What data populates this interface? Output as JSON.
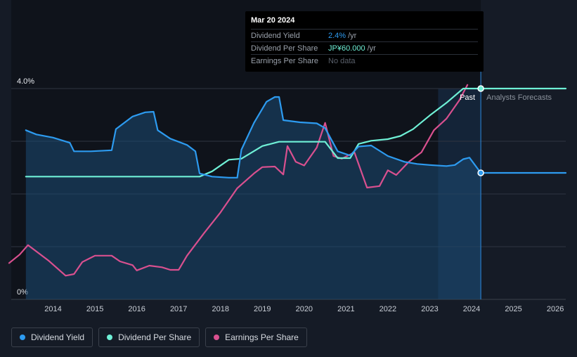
{
  "tooltip": {
    "date": "Mar 20 2024",
    "rows": [
      {
        "label": "Dividend Yield",
        "value": "2.4%",
        "unit": "/yr",
        "color": "#2d9bf0"
      },
      {
        "label": "Dividend Per Share",
        "value": "JP¥60.000",
        "unit": "/yr",
        "color": "#6ff0d6"
      },
      {
        "label": "Earnings Per Share",
        "value": "No data",
        "unit": "",
        "color": "#5a606b"
      }
    ]
  },
  "markers": {
    "past": "Past",
    "forecast": "Analysts Forecasts"
  },
  "legend": [
    {
      "label": "Dividend Yield",
      "color": "#2d9bf0"
    },
    {
      "label": "Dividend Per Share",
      "color": "#6ff0d6"
    },
    {
      "label": "Earnings Per Share",
      "color": "#d9508f"
    }
  ],
  "chart_data": {
    "type": "line",
    "ylim": [
      0,
      4.0
    ],
    "y_tick_labels": [
      {
        "value": 4.0,
        "label": "4.0%"
      },
      {
        "value": 0,
        "label": "0%"
      }
    ],
    "xlim": [
      2013.0,
      2026.25
    ],
    "x_ticks": [
      2014,
      2015,
      2016,
      2017,
      2018,
      2019,
      2020,
      2021,
      2022,
      2023,
      2024,
      2025,
      2026
    ],
    "past_boundary": 2024.22,
    "forecast_band_start": 2023.2,
    "series": [
      {
        "name": "Dividend Yield",
        "color": "#2d9bf0",
        "points": [
          [
            2013.35,
            3.21
          ],
          [
            2013.6,
            3.13
          ],
          [
            2014.0,
            3.07
          ],
          [
            2014.4,
            2.97
          ],
          [
            2014.5,
            2.81
          ],
          [
            2014.9,
            2.81
          ],
          [
            2015.4,
            2.83
          ],
          [
            2015.5,
            3.23
          ],
          [
            2015.9,
            3.47
          ],
          [
            2016.2,
            3.55
          ],
          [
            2016.4,
            3.56
          ],
          [
            2016.5,
            3.21
          ],
          [
            2016.8,
            3.05
          ],
          [
            2017.2,
            2.93
          ],
          [
            2017.4,
            2.81
          ],
          [
            2017.5,
            2.39
          ],
          [
            2017.8,
            2.33
          ],
          [
            2018.2,
            2.31
          ],
          [
            2018.4,
            2.31
          ],
          [
            2018.5,
            2.84
          ],
          [
            2018.8,
            3.35
          ],
          [
            2019.1,
            3.75
          ],
          [
            2019.3,
            3.84
          ],
          [
            2019.4,
            3.84
          ],
          [
            2019.5,
            3.4
          ],
          [
            2019.9,
            3.36
          ],
          [
            2020.3,
            3.34
          ],
          [
            2020.5,
            3.25
          ],
          [
            2020.8,
            2.81
          ],
          [
            2021.1,
            2.73
          ],
          [
            2021.3,
            2.9
          ],
          [
            2021.6,
            2.92
          ],
          [
            2022.0,
            2.72
          ],
          [
            2022.4,
            2.61
          ],
          [
            2022.7,
            2.57
          ],
          [
            2023.0,
            2.55
          ],
          [
            2023.4,
            2.53
          ],
          [
            2023.6,
            2.55
          ],
          [
            2023.8,
            2.66
          ],
          [
            2023.95,
            2.69
          ],
          [
            2024.22,
            2.4
          ],
          [
            2026.25,
            2.4
          ]
        ]
      },
      {
        "name": "Dividend Per Share",
        "color": "#6ff0d6",
        "points": [
          [
            2013.35,
            2.33
          ],
          [
            2017.5,
            2.33
          ],
          [
            2017.8,
            2.43
          ],
          [
            2018.2,
            2.65
          ],
          [
            2018.5,
            2.67
          ],
          [
            2019.0,
            2.91
          ],
          [
            2019.4,
            2.99
          ],
          [
            2020.0,
            2.99
          ],
          [
            2020.5,
            2.99
          ],
          [
            2020.8,
            2.68
          ],
          [
            2021.1,
            2.68
          ],
          [
            2021.3,
            2.95
          ],
          [
            2021.6,
            3.01
          ],
          [
            2022.0,
            3.04
          ],
          [
            2022.3,
            3.1
          ],
          [
            2022.6,
            3.23
          ],
          [
            2023.0,
            3.49
          ],
          [
            2023.4,
            3.73
          ],
          [
            2023.8,
            4.0
          ],
          [
            2024.22,
            4.0
          ],
          [
            2026.25,
            4.0
          ]
        ]
      },
      {
        "name": "Earnings Per Share",
        "color": "#d9508f",
        "points": [
          [
            2012.95,
            0.69
          ],
          [
            2013.2,
            0.85
          ],
          [
            2013.4,
            1.03
          ],
          [
            2013.6,
            0.91
          ],
          [
            2013.9,
            0.73
          ],
          [
            2014.3,
            0.45
          ],
          [
            2014.5,
            0.48
          ],
          [
            2014.7,
            0.71
          ],
          [
            2015.0,
            0.83
          ],
          [
            2015.4,
            0.83
          ],
          [
            2015.6,
            0.72
          ],
          [
            2015.9,
            0.65
          ],
          [
            2016.0,
            0.55
          ],
          [
            2016.3,
            0.64
          ],
          [
            2016.6,
            0.61
          ],
          [
            2016.8,
            0.56
          ],
          [
            2017.0,
            0.56
          ],
          [
            2017.2,
            0.83
          ],
          [
            2017.6,
            1.25
          ],
          [
            2018.0,
            1.65
          ],
          [
            2018.4,
            2.11
          ],
          [
            2018.8,
            2.39
          ],
          [
            2019.0,
            2.51
          ],
          [
            2019.3,
            2.52
          ],
          [
            2019.5,
            2.37
          ],
          [
            2019.6,
            2.91
          ],
          [
            2019.8,
            2.61
          ],
          [
            2020.0,
            2.54
          ],
          [
            2020.3,
            2.88
          ],
          [
            2020.5,
            3.35
          ],
          [
            2020.7,
            2.72
          ],
          [
            2020.9,
            2.67
          ],
          [
            2021.2,
            2.79
          ],
          [
            2021.5,
            2.12
          ],
          [
            2021.8,
            2.15
          ],
          [
            2022.0,
            2.45
          ],
          [
            2022.2,
            2.36
          ],
          [
            2022.5,
            2.61
          ],
          [
            2022.8,
            2.79
          ],
          [
            2023.1,
            3.21
          ],
          [
            2023.4,
            3.43
          ],
          [
            2023.7,
            3.77
          ],
          [
            2023.9,
            4.07
          ]
        ]
      }
    ]
  }
}
